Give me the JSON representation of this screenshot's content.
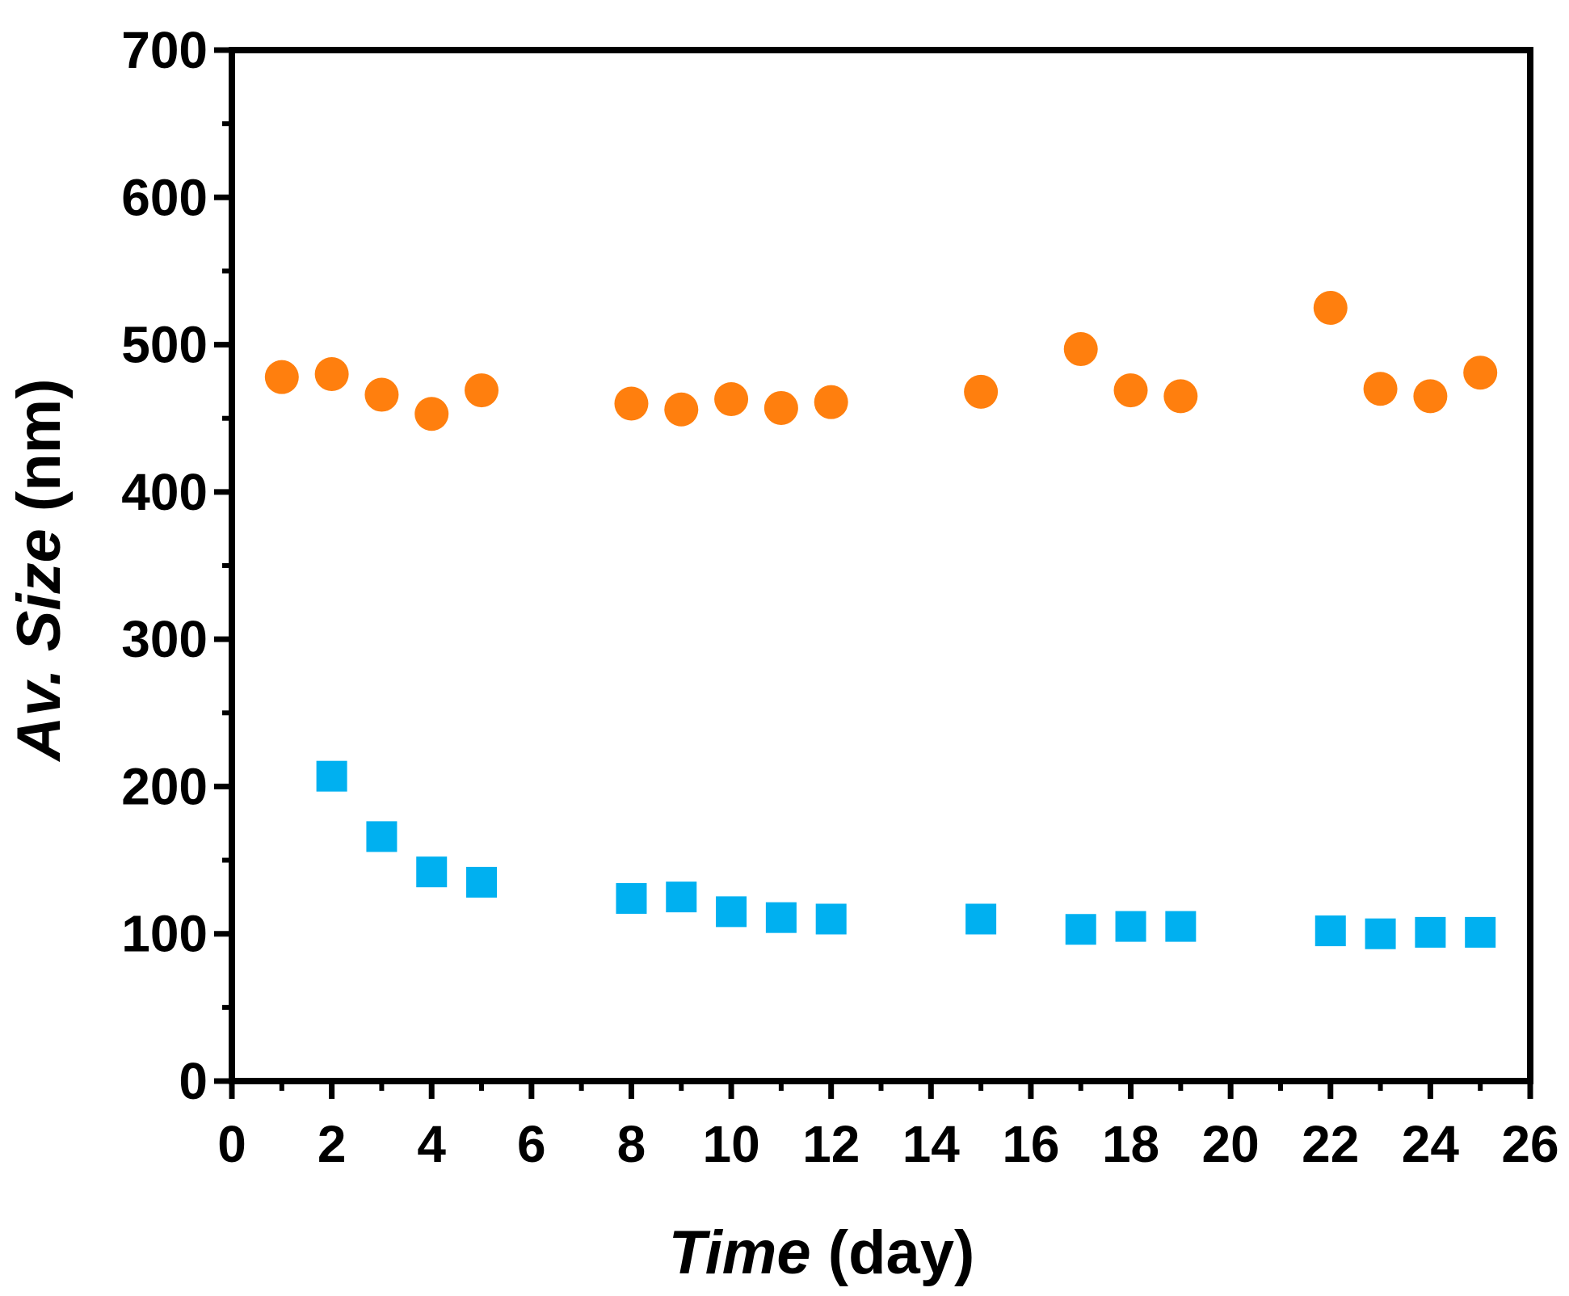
{
  "chart_data": {
    "type": "scatter",
    "title": "",
    "xlabel": {
      "italic": "Time",
      "plain": " (day)"
    },
    "ylabel": {
      "italic": "Av. Size",
      "plain": " (nm)"
    },
    "xlim": [
      0,
      26
    ],
    "ylim": [
      0,
      700
    ],
    "x_major_ticks": [
      0,
      2,
      4,
      6,
      8,
      10,
      12,
      14,
      16,
      18,
      20,
      22,
      24,
      26
    ],
    "y_major_ticks": [
      0,
      100,
      200,
      300,
      400,
      500,
      600,
      700
    ],
    "x_tick_labels": [
      "0",
      "2",
      "4",
      "6",
      "8",
      "10",
      "12",
      "14",
      "16",
      "18",
      "20",
      "22",
      "24",
      "26"
    ],
    "y_tick_labels": [
      "0",
      "100",
      "200",
      "300",
      "400",
      "500",
      "600",
      "700"
    ],
    "x_minor_step": 1,
    "y_minor_step": 50,
    "grid": false,
    "legend": "none",
    "series": [
      {
        "name": "orange circles",
        "marker": "circle",
        "color": "#FF7F0E",
        "x": [
          1,
          2,
          3,
          4,
          5,
          8,
          9,
          10,
          11,
          12,
          15,
          17,
          18,
          19,
          22,
          23,
          24,
          25
        ],
        "y": [
          478,
          480,
          466,
          453,
          469,
          460,
          456,
          463,
          457,
          461,
          468,
          497,
          469,
          465,
          525,
          470,
          465,
          481
        ]
      },
      {
        "name": "blue squares",
        "marker": "square",
        "color": "#00B0F0",
        "x": [
          2,
          3,
          4,
          5,
          8,
          9,
          10,
          11,
          12,
          15,
          17,
          18,
          19,
          22,
          23,
          24,
          25
        ],
        "y": [
          207,
          166,
          142,
          135,
          124,
          125,
          115,
          111,
          110,
          110,
          103,
          105,
          105,
          102,
          100,
          101,
          101
        ]
      }
    ]
  }
}
